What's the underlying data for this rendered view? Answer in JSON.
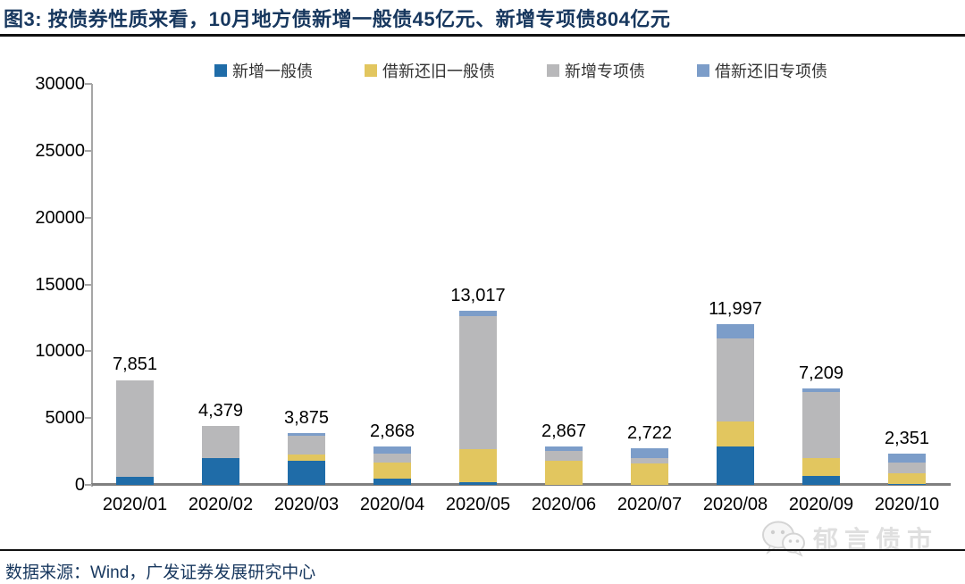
{
  "title": "图3:  按债券性质来看，10月地方债新增一般债45亿元、新增专项债804亿元",
  "chart_data": {
    "type": "bar",
    "stacked": true,
    "title": "按债券性质来看，10月地方债新增一般债45亿元、新增专项债804亿元",
    "categories": [
      "2020/01",
      "2020/02",
      "2020/03",
      "2020/04",
      "2020/05",
      "2020/06",
      "2020/07",
      "2020/08",
      "2020/09",
      "2020/10"
    ],
    "series": [
      {
        "name": "新增一般债",
        "color": "#1F6CA8",
        "values": [
          620,
          1980,
          1790,
          450,
          220,
          0,
          0,
          2850,
          700,
          45
        ]
      },
      {
        "name": "借新还旧一般债",
        "color": "#E2C65F",
        "values": [
          0,
          0,
          495,
          1230,
          2452,
          1800,
          1620,
          1870,
          1330,
          850
        ]
      },
      {
        "name": "新增专项债",
        "color": "#B8B8BA",
        "values": [
          7231,
          2399,
          1365,
          678,
          9965,
          737,
          372,
          6250,
          4899,
          804
        ]
      },
      {
        "name": "借新还旧专项债",
        "color": "#7C9DC9",
        "values": [
          0,
          0,
          225,
          510,
          380,
          330,
          730,
          1027,
          280,
          652
        ]
      }
    ],
    "totals": [
      7851,
      4379,
      3875,
      2868,
      13017,
      2867,
      2722,
      11997,
      7209,
      2351
    ],
    "total_labels": [
      "7,851",
      "4,379",
      "3,875",
      "2,868",
      "13,017",
      "2,867",
      "2,722",
      "11,997",
      "7,209",
      "2,351"
    ],
    "xlabel": "",
    "ylabel": "",
    "ylim": [
      0,
      30000
    ],
    "yticks": [
      "30000",
      "25000",
      "20000",
      "15000",
      "10000",
      "5000",
      "0"
    ],
    "ytick_values": [
      30000,
      25000,
      20000,
      15000,
      10000,
      5000,
      0
    ],
    "grid": false,
    "legend_position": "top"
  },
  "footer": {
    "source": "数据来源：Wind，广发证券发展研究中心"
  },
  "watermark": {
    "icon": "wechat-icon",
    "text": "郁言债市"
  },
  "colors": {
    "title_navy": "#17375E",
    "axis_gray": "#a6a6a6",
    "baseline_gray": "#7f7f7f",
    "watermark_gray": "#dcdcdc"
  }
}
